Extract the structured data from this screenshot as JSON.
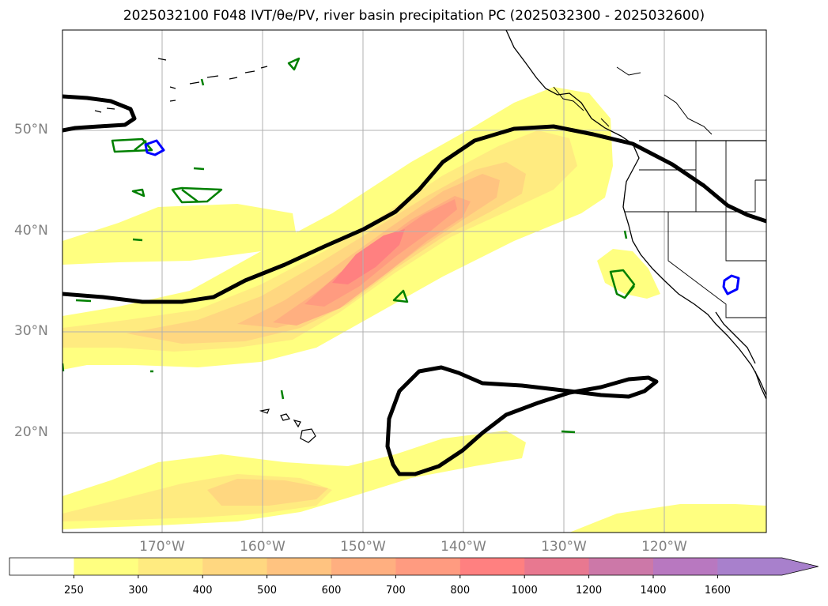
{
  "title": "2025032100 F048 IVT/θe/PV, river basin precipitation PC (2025032300 - 2025032600)",
  "lat_labels": [
    "50°N",
    "40°N",
    "30°N",
    "20°N"
  ],
  "lon_labels": [
    "170°W",
    "160°W",
    "150°W",
    "140°W",
    "130°W",
    "120°W"
  ],
  "colorbar": {
    "ticks": [
      "250",
      "300",
      "400",
      "500",
      "600",
      "700",
      "800",
      "1000",
      "1200",
      "1400",
      "1600"
    ],
    "colors": [
      "#ffffff",
      "#ffff80",
      "#ffeb80",
      "#ffd780",
      "#ffc380",
      "#ffaf80",
      "#ff9b80",
      "#ff8080",
      "#e87890",
      "#cc78a8",
      "#b878c0",
      "#a880cc"
    ],
    "extend": "max"
  },
  "colors": {
    "ivt_250": "#ffff80",
    "ivt_300": "#ffeb80",
    "ivt_400": "#ffd780",
    "ivt_500": "#ffc380",
    "ivt_600": "#ffaf80",
    "ivt_700": "#ff9b80",
    "ivt_800": "#ff8080",
    "pv_contour": "#000000",
    "theta_e_contour": "#008000",
    "precip_contour": "#0000ff",
    "gridline": "#b0b0b0",
    "coastline": "#000000"
  }
}
